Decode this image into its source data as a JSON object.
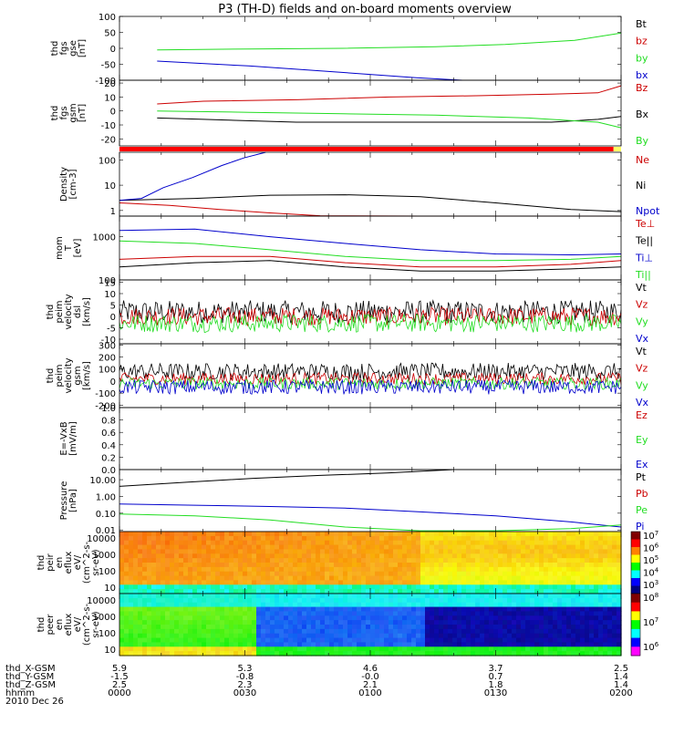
{
  "title": "P3 (TH-D) fields and on-board moments overview",
  "colors": {
    "black": "#000000",
    "red": "#cc0000",
    "green": "#22dd22",
    "blue": "#0000cc",
    "bar_red": "#ff0000",
    "bar_yellow": "#ffff66"
  },
  "chart_data": [
    {
      "id": "fgs_gse",
      "type": "line",
      "ylabel": [
        "thd",
        "fgs",
        "gse",
        "[nT]"
      ],
      "yticks": [
        "100",
        "50",
        "0",
        "-50",
        "-100"
      ],
      "ylim": [
        -100,
        100
      ],
      "legend": [
        {
          "name": "Bt",
          "color": "black"
        },
        {
          "name": "bz",
          "color": "red"
        },
        {
          "name": "by",
          "color": "green"
        },
        {
          "name": "bx",
          "color": "blue"
        }
      ],
      "series": [
        {
          "name": "by",
          "color": "green",
          "x_start": "00:09",
          "x_end": "02:00",
          "points": [
            [
              0,
              -5
            ],
            [
              0.2,
              -2
            ],
            [
              0.4,
              0
            ],
            [
              0.6,
              5
            ],
            [
              0.75,
              12
            ],
            [
              0.9,
              25
            ],
            [
              1,
              48
            ]
          ]
        },
        {
          "name": "bx",
          "color": "blue",
          "x_start": "00:09",
          "x_end": "01:22",
          "points": [
            [
              0,
              -40
            ],
            [
              0.3,
              -55
            ],
            [
              0.6,
              -75
            ],
            [
              0.85,
              -92
            ],
            [
              1,
              -100
            ]
          ]
        }
      ]
    },
    {
      "id": "fgs_gsm",
      "type": "line",
      "ylabel": [
        "thd",
        "fgs",
        "gsm",
        "[nT]"
      ],
      "yticks": [
        "20",
        "10",
        "0",
        "-10",
        "-20"
      ],
      "ylim": [
        -25,
        22
      ],
      "legend": [
        {
          "name": "Bz",
          "color": "red"
        },
        {
          "name": "Bx",
          "color": "black"
        },
        {
          "name": "By",
          "color": "green"
        }
      ],
      "series": [
        {
          "name": "Bz",
          "color": "red",
          "x_start": "00:09",
          "x_end": "02:00",
          "points": [
            [
              0,
              5
            ],
            [
              0.1,
              7
            ],
            [
              0.3,
              8
            ],
            [
              0.5,
              10
            ],
            [
              0.7,
              11
            ],
            [
              0.85,
              12
            ],
            [
              0.95,
              13
            ],
            [
              1,
              18
            ]
          ]
        },
        {
          "name": "Bx",
          "color": "black",
          "x_start": "00:09",
          "x_end": "02:00",
          "points": [
            [
              0,
              -5
            ],
            [
              0.1,
              -6
            ],
            [
              0.3,
              -8
            ],
            [
              0.5,
              -8
            ],
            [
              0.7,
              -8
            ],
            [
              0.85,
              -8
            ],
            [
              0.95,
              -6
            ],
            [
              1,
              -4
            ]
          ]
        },
        {
          "name": "By",
          "color": "green",
          "x_start": "00:09",
          "x_end": "02:00",
          "points": [
            [
              0,
              0
            ],
            [
              0.2,
              -1
            ],
            [
              0.4,
              -2
            ],
            [
              0.6,
              -3
            ],
            [
              0.8,
              -5
            ],
            [
              0.95,
              -8
            ],
            [
              1,
              -12
            ]
          ]
        }
      ]
    },
    {
      "id": "status_bar",
      "type": "bar",
      "segments": [
        {
          "from": 0,
          "to": 0.985,
          "color": "bar_red"
        },
        {
          "from": 0.985,
          "to": 1,
          "color": "bar_yellow"
        }
      ]
    },
    {
      "id": "density",
      "type": "line",
      "ylabel": [
        "Density",
        "[cm-3]"
      ],
      "yticks": [
        "100",
        "10",
        "1"
      ],
      "ylim": [
        0.6,
        200
      ],
      "log": true,
      "legend": [
        {
          "name": "Ne",
          "color": "red"
        },
        {
          "name": "Ni",
          "color": "black"
        },
        {
          "name": "Npot",
          "color": "blue"
        }
      ],
      "series": [
        {
          "name": "Ni",
          "color": "black",
          "x_start": "00:00",
          "x_end": "02:00",
          "points": [
            [
              0,
              2.5
            ],
            [
              0.15,
              3
            ],
            [
              0.3,
              4
            ],
            [
              0.45,
              4.2
            ],
            [
              0.6,
              3.5
            ],
            [
              0.75,
              2
            ],
            [
              0.9,
              1.1
            ],
            [
              1,
              0.9
            ]
          ]
        },
        {
          "name": "Ne",
          "color": "red",
          "x_start": "00:00",
          "x_end": "02:00",
          "points": [
            [
              0,
              2
            ],
            [
              0.1,
              1.6
            ],
            [
              0.2,
              1.1
            ],
            [
              0.3,
              0.8
            ],
            [
              0.4,
              0.62
            ],
            [
              0.6,
              0.6
            ],
            [
              1,
              0.6
            ]
          ]
        },
        {
          "name": "Npot",
          "color": "blue",
          "x_start": "00:00",
          "x_end": "00:35",
          "points": [
            [
              0,
              2.5
            ],
            [
              0.15,
              3
            ],
            [
              0.3,
              8
            ],
            [
              0.5,
              20
            ],
            [
              0.7,
              60
            ],
            [
              0.85,
              120
            ],
            [
              1,
              200
            ]
          ]
        }
      ]
    },
    {
      "id": "mom_temp",
      "type": "line",
      "ylabel": [
        "mom",
        "T",
        "[eV]"
      ],
      "yticks": [
        "1000",
        "100"
      ],
      "ylim": [
        100,
        3000
      ],
      "log": true,
      "legend": [
        {
          "name": "Te⊥",
          "color": "red"
        },
        {
          "name": "Te||",
          "color": "black"
        },
        {
          "name": "Ti⊥",
          "color": "blue"
        },
        {
          "name": "Ti||",
          "color": "green"
        }
      ],
      "series": [
        {
          "name": "Ti⊥",
          "color": "blue",
          "x_start": "00:00",
          "x_end": "02:00",
          "points": [
            [
              0,
              1400
            ],
            [
              0.15,
              1500
            ],
            [
              0.3,
              1000
            ],
            [
              0.45,
              700
            ],
            [
              0.6,
              500
            ],
            [
              0.75,
              400
            ],
            [
              0.9,
              380
            ],
            [
              1,
              400
            ]
          ]
        },
        {
          "name": "Ti||",
          "color": "green",
          "x_start": "00:00",
          "x_end": "02:00",
          "points": [
            [
              0,
              800
            ],
            [
              0.15,
              700
            ],
            [
              0.3,
              500
            ],
            [
              0.45,
              350
            ],
            [
              0.6,
              280
            ],
            [
              0.75,
              280
            ],
            [
              0.9,
              300
            ],
            [
              1,
              350
            ]
          ]
        },
        {
          "name": "Te⊥",
          "color": "red",
          "x_start": "00:00",
          "x_end": "02:00",
          "points": [
            [
              0,
              300
            ],
            [
              0.15,
              350
            ],
            [
              0.3,
              350
            ],
            [
              0.45,
              250
            ],
            [
              0.6,
              200
            ],
            [
              0.75,
              200
            ],
            [
              0.9,
              230
            ],
            [
              1,
              280
            ]
          ]
        },
        {
          "name": "Te||",
          "color": "black",
          "x_start": "00:00",
          "x_end": "02:00",
          "points": [
            [
              0,
              200
            ],
            [
              0.15,
              250
            ],
            [
              0.3,
              280
            ],
            [
              0.45,
              200
            ],
            [
              0.6,
              160
            ],
            [
              0.75,
              160
            ],
            [
              0.9,
              180
            ],
            [
              1,
              200
            ]
          ]
        }
      ]
    },
    {
      "id": "velocity_dsl",
      "type": "line",
      "ylabel": [
        "thd",
        "peim",
        "velocity",
        "dsl",
        "[km/s]"
      ],
      "yticks": [
        "15",
        "10",
        "5",
        "0",
        "-5",
        "-10"
      ],
      "ylim": [
        -12,
        16
      ],
      "legend": [
        {
          "name": "Vt",
          "color": "black"
        },
        {
          "name": "Vz",
          "color": "red"
        },
        {
          "name": "Vy",
          "color": "green"
        },
        {
          "name": "Vx",
          "color": "blue"
        }
      ],
      "noise": [
        {
          "name": "Vt",
          "color": "black",
          "mean": 2,
          "amp": 5
        },
        {
          "name": "Vz",
          "color": "red",
          "mean": 0,
          "amp": 4
        },
        {
          "name": "Vy",
          "color": "green",
          "mean": -3,
          "amp": 4
        }
      ]
    },
    {
      "id": "velocity_gsm",
      "type": "line",
      "ylabel": [
        "thd",
        "peim",
        "velocity",
        "gsm",
        "[km/s]"
      ],
      "yticks": [
        "300",
        "200",
        "100",
        "0",
        "-100",
        "-200"
      ],
      "ylim": [
        -220,
        310
      ],
      "legend": [
        {
          "name": "Vt",
          "color": "black"
        },
        {
          "name": "Vz",
          "color": "red"
        },
        {
          "name": "Vy",
          "color": "green"
        },
        {
          "name": "Vx",
          "color": "blue"
        }
      ],
      "noise": [
        {
          "name": "Vt",
          "color": "black",
          "mean": 80,
          "amp": 70
        },
        {
          "name": "Vz",
          "color": "red",
          "mean": 20,
          "amp": 50
        },
        {
          "name": "Vy",
          "color": "green",
          "mean": -20,
          "amp": 50
        },
        {
          "name": "Vx",
          "color": "blue",
          "mean": -50,
          "amp": 60
        }
      ]
    },
    {
      "id": "e_vxb",
      "type": "line",
      "ylabel": [
        "E=-VxB",
        "[mV/m]"
      ],
      "yticks": [
        "1.0",
        "0.8",
        "0.6",
        "0.4",
        "0.2",
        "0.0"
      ],
      "ylim": [
        0,
        1
      ],
      "legend": [
        {
          "name": "Ez",
          "color": "red"
        },
        {
          "name": "Ey",
          "color": "green"
        },
        {
          "name": "Ex",
          "color": "blue"
        }
      ],
      "series": []
    },
    {
      "id": "pressure",
      "type": "line",
      "ylabel": [
        "Pressure",
        "[nPa]"
      ],
      "yticks": [
        "10.00",
        "1.00",
        "0.10",
        "0.01"
      ],
      "ylim": [
        0.008,
        40
      ],
      "log": true,
      "legend": [
        {
          "name": "Pt",
          "color": "black"
        },
        {
          "name": "Pb",
          "color": "red"
        },
        {
          "name": "Pe",
          "color": "green"
        },
        {
          "name": "Pi",
          "color": "blue"
        }
      ],
      "series": [
        {
          "name": "Pt",
          "color": "black",
          "x_start": "00:00",
          "x_end": "01:20",
          "points": [
            [
              0,
              4
            ],
            [
              0.2,
              7
            ],
            [
              0.4,
              12
            ],
            [
              0.6,
              18
            ],
            [
              0.8,
              25
            ],
            [
              1,
              40
            ]
          ]
        },
        {
          "name": "Pi",
          "color": "blue",
          "x_start": "00:00",
          "x_end": "02:00",
          "points": [
            [
              0,
              0.35
            ],
            [
              0.15,
              0.3
            ],
            [
              0.3,
              0.25
            ],
            [
              0.45,
              0.2
            ],
            [
              0.6,
              0.12
            ],
            [
              0.75,
              0.07
            ],
            [
              0.9,
              0.03
            ],
            [
              1,
              0.015
            ]
          ]
        },
        {
          "name": "Pe",
          "color": "green",
          "x_start": "00:00",
          "x_end": "02:00",
          "points": [
            [
              0,
              0.09
            ],
            [
              0.15,
              0.07
            ],
            [
              0.3,
              0.04
            ],
            [
              0.45,
              0.015
            ],
            [
              0.6,
              0.009
            ],
            [
              0.75,
              0.009
            ],
            [
              0.9,
              0.012
            ],
            [
              1,
              0.02
            ]
          ]
        }
      ]
    },
    {
      "id": "ion_spec",
      "type": "heatmap",
      "ylabel": [
        "thd",
        "peir",
        "en",
        "eflux",
        "eV/",
        "(cm^2-s-",
        "sr-eV)"
      ],
      "yticks": [
        "10000",
        "1000",
        "100",
        "10"
      ],
      "cbar": {
        "ticks": [
          "10^7",
          "10^6",
          "10^5",
          "10^4",
          "10^3"
        ]
      }
    },
    {
      "id": "elec_spec",
      "type": "heatmap",
      "ylabel": [
        "thd",
        "peer",
        "en",
        "eflux",
        "eV/",
        "(cm^2-s-",
        "sr-eV)"
      ],
      "yticks": [
        "10000",
        "1000",
        "100",
        "10"
      ],
      "cbar": {
        "ticks": [
          "10^8",
          "10^7",
          "10^6"
        ]
      }
    }
  ],
  "axis_labels": {
    "rows": [
      {
        "label": "thd_X-GSM",
        "values": [
          "5.9",
          "5.3",
          "4.6",
          "3.7",
          "2.5"
        ]
      },
      {
        "label": "thd_Y-GSM",
        "values": [
          "-1.5",
          "-0.8",
          "-0.0",
          "0.7",
          "1.4"
        ]
      },
      {
        "label": "thd_Z-GSM",
        "values": [
          "2.5",
          "2.3",
          "2.1",
          "1.8",
          "1.4"
        ]
      },
      {
        "label": "hhmm",
        "values": [
          "0000",
          "0030",
          "0100",
          "0130",
          "0200"
        ]
      }
    ],
    "date": "2010 Dec 26"
  }
}
